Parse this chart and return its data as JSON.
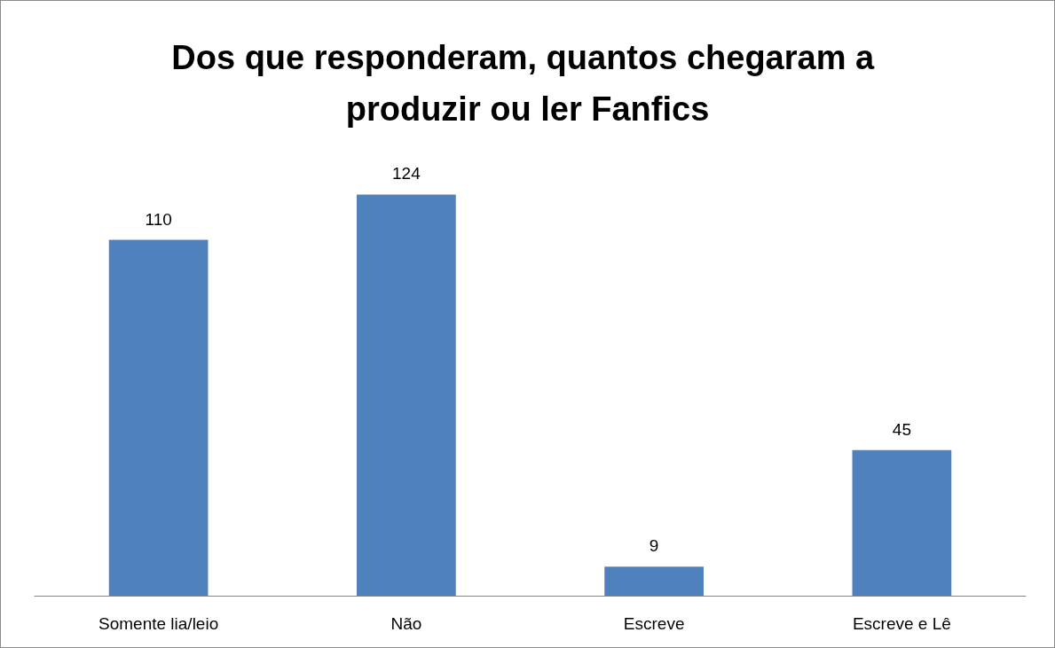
{
  "chart_data": {
    "type": "bar",
    "title": "Dos que responderam, quantos chegaram a produzir ou ler Fanfics",
    "categories": [
      "Somente lia/leio",
      "Não",
      "Escreve",
      "Escreve e Lê"
    ],
    "values": [
      110,
      124,
      9,
      45
    ],
    "color": "#4f81bd",
    "data_labels": true
  }
}
